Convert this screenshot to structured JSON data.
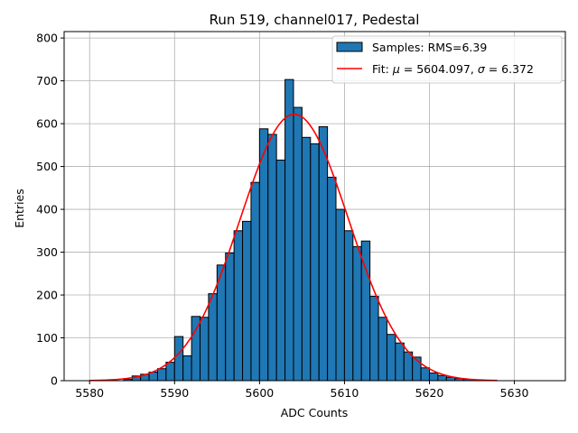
{
  "chart_data": {
    "type": "histogram",
    "title": "Run 519, channel017, Pedestal",
    "xlabel": "ADC Counts",
    "ylabel": "Entries",
    "xlim": [
      5577,
      5636
    ],
    "ylim": [
      0,
      815
    ],
    "xticks": [
      5580,
      5590,
      5600,
      5610,
      5620,
      5630
    ],
    "yticks": [
      0,
      100,
      200,
      300,
      400,
      500,
      600,
      700,
      800
    ],
    "grid": true,
    "legend_position": "top-right",
    "bins": {
      "start": 5584,
      "width": 1,
      "counts": [
        3,
        11,
        15,
        20,
        28,
        43,
        103,
        58,
        150,
        148,
        203,
        270,
        298,
        350,
        372,
        463,
        588,
        575,
        515,
        703,
        638,
        568,
        553,
        593,
        475,
        400,
        350,
        313,
        326,
        197,
        148,
        108,
        88,
        67,
        55,
        30,
        18,
        12,
        8,
        5,
        3,
        1
      ]
    },
    "histogram_series": {
      "name": "Samples: RMS=6.39",
      "color": "#1f77b4",
      "edge_color": "#000000"
    },
    "fit_series": {
      "name_parts": {
        "prefix": "Fit: ",
        "mu_symbol": "μ",
        "mu_value": " = 5604.097, ",
        "sigma_symbol": "σ",
        "sigma_value": " = 6.372"
      },
      "mu": 5604.097,
      "sigma": 6.372,
      "amplitude": 622,
      "x_range": [
        5580,
        5628
      ],
      "color": "#ff0000"
    }
  }
}
